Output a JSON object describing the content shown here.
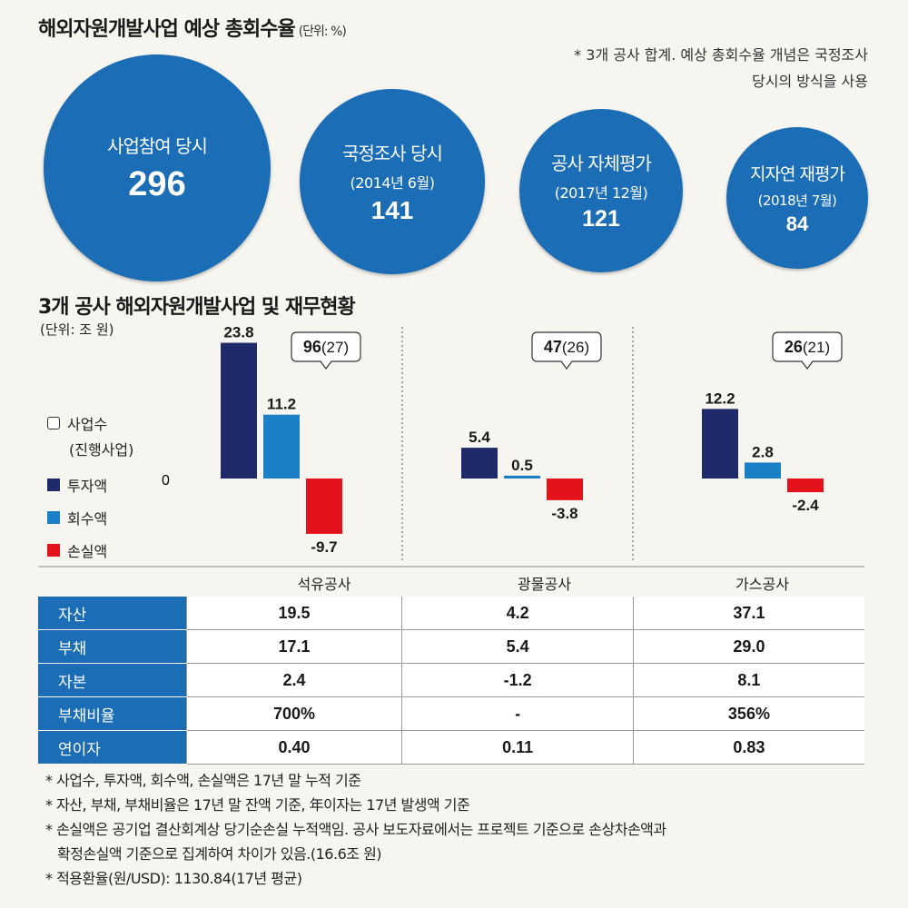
{
  "top_section": {
    "title": "해외자원개발사업 예상 총회수율",
    "unit": "(단위: %)",
    "note_line1": "* 3개 공사 합계. 예상 총회수율 개념은 국정조사",
    "note_line2": "당시의 방식을 사용",
    "circles": [
      {
        "label": "사업참여 당시",
        "sub": "",
        "value": "296"
      },
      {
        "label": "국정조사 당시",
        "sub": "(2014년 6월)",
        "value": "141"
      },
      {
        "label": "공사 자체평가",
        "sub": "(2017년 12월)",
        "value": "121"
      },
      {
        "label": "지자연 재평가",
        "sub": "(2018년 7월)",
        "value": "84"
      }
    ]
  },
  "bottom_section": {
    "title": "3개 공사 해외자원개발사업 및 재무현황",
    "unit": "(단위: 조 원)",
    "legend": {
      "projects_line1": "사업수",
      "projects_line2": "(진행사업)",
      "invest": "투자액",
      "recover": "회수액",
      "loss": "손실액"
    },
    "zero_label": "0"
  },
  "chart_data": {
    "type": "bar",
    "title": "3개 공사 해외자원개발사업 및 재무현황",
    "ylabel": "(단위: 조 원)",
    "categories": [
      "석유공사",
      "광물공사",
      "가스공사"
    ],
    "series": [
      {
        "name": "투자액",
        "color": "#1f2a6b",
        "values": [
          23.8,
          5.4,
          12.2
        ],
        "labels": [
          "23.8",
          "5.4",
          "12.2"
        ]
      },
      {
        "name": "회수액",
        "color": "#1b7fc6",
        "values": [
          11.2,
          0.5,
          2.8
        ],
        "labels": [
          "11.2",
          "0.5",
          "2.8"
        ]
      },
      {
        "name": "손실액",
        "color": "#e3121b",
        "values": [
          -9.7,
          -3.8,
          -2.4
        ],
        "labels": [
          "-9.7",
          "-3.8",
          "-2.4"
        ]
      }
    ],
    "projects": [
      {
        "total": "96",
        "ongoing": "(27)"
      },
      {
        "total": "47",
        "ongoing": "(26)"
      },
      {
        "total": "26",
        "ongoing": "(21)"
      }
    ],
    "ylim": [
      -12,
      25
    ]
  },
  "table": {
    "headers": [
      "석유공사",
      "광물공사",
      "가스공사"
    ],
    "rows": [
      {
        "label": "자산",
        "values": [
          "19.5",
          "4.2",
          "37.1"
        ]
      },
      {
        "label": "부채",
        "values": [
          "17.1",
          "5.4",
          "29.0"
        ]
      },
      {
        "label": "자본",
        "values": [
          "2.4",
          "-1.2",
          "8.1"
        ]
      },
      {
        "label": "부채비율",
        "values": [
          "700%",
          "-",
          "356%"
        ]
      },
      {
        "label": "연이자",
        "values": [
          "0.40",
          "0.11",
          "0.83"
        ]
      }
    ]
  },
  "footnotes": {
    "n1": "* 사업수, 투자액, 회수액, 손실액은 17년 말 누적 기준",
    "n2": "* 자산, 부채, 부채비율은 17년 말 잔액 기준, 年이자는 17년 발생액 기준",
    "n3a": "* 손실액은 공기업 결산회계상 당기순손실 누적액임. 공사 보도자료에서는 프로젝트 기준으로 손상차손액과",
    "n3b": "확정손실액 기준으로 집계하여 차이가 있음.(16.6조 원)",
    "n4": "* 적용환율(원/USD): 1130.84(17년 평균)"
  }
}
